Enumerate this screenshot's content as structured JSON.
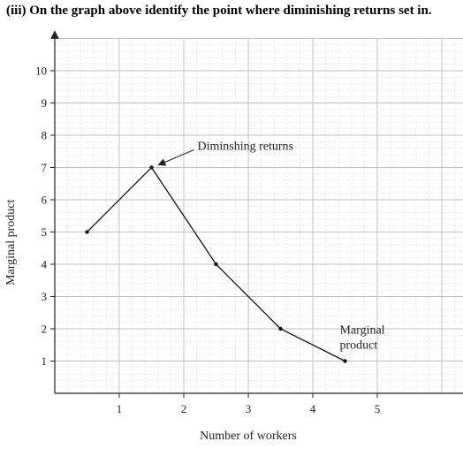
{
  "question": "(iii)   On the graph above identify the point where diminishing returns set in.",
  "chart_data": {
    "type": "line",
    "title": "",
    "xlabel": "Number of workers",
    "ylabel": "Marginal product",
    "xlim": [
      0,
      6
    ],
    "ylim": [
      0,
      11
    ],
    "xticks": [
      1,
      2,
      3,
      4,
      5
    ],
    "yticks": [
      1,
      2,
      3,
      4,
      5,
      6,
      7,
      8,
      9,
      10
    ],
    "grid": true,
    "series": [
      {
        "name": "Marginal product",
        "x": [
          0.5,
          1.5,
          2.5,
          3.5,
          4.5
        ],
        "y": [
          5,
          7,
          4,
          2,
          1
        ]
      }
    ],
    "annotations": [
      {
        "text": "Diminshing returns",
        "x": 1.5,
        "y": 7,
        "arrow": true
      },
      {
        "text": "Marginal product",
        "x": 4.5,
        "y": 1,
        "arrow": false
      }
    ]
  }
}
